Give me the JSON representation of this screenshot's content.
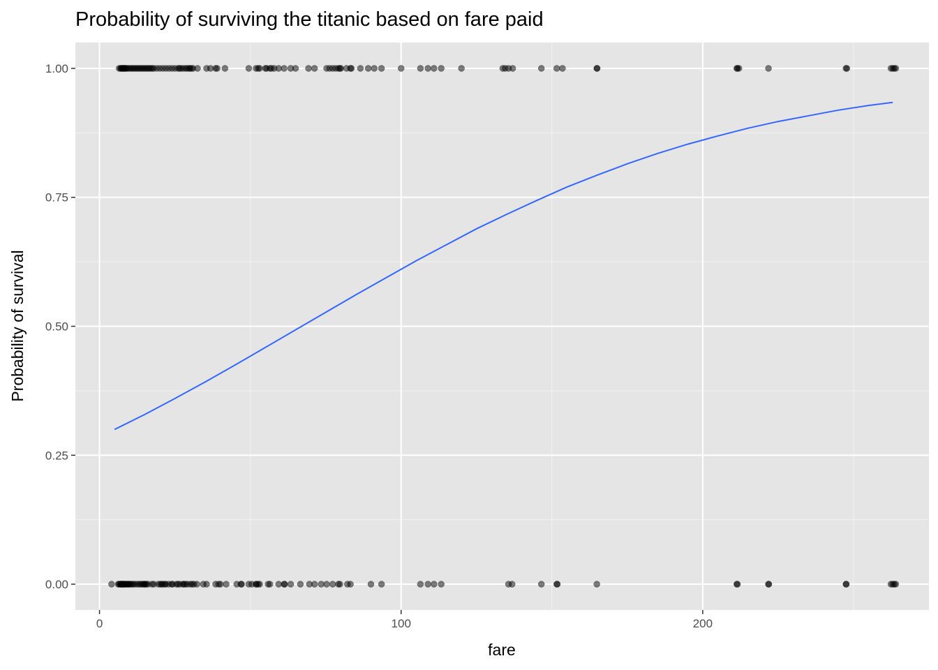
{
  "chart_data": {
    "type": "scatter",
    "title": "Probability of surviving the titanic based on fare paid",
    "xlabel": "fare",
    "ylabel": "Probability of survival",
    "xlim": [
      -8,
      275
    ],
    "ylim": [
      -0.05,
      1.05
    ],
    "x_ticks": [
      0,
      100,
      200
    ],
    "y_ticks": [
      0.0,
      0.25,
      0.5,
      0.75,
      1.0
    ],
    "x_tick_labels": [
      "0",
      "100",
      "200"
    ],
    "y_tick_labels": [
      "0.00",
      "0.25",
      "0.50",
      "0.75",
      "1.00"
    ],
    "grid": true,
    "point_color": "#000000",
    "point_opacity": 0.5,
    "line_color": "#3366ff",
    "panel_background": "#e5e5e5",
    "series": [
      {
        "kind": "points",
        "y": 1,
        "x": [
          6.5,
          7.0,
          7.2,
          7.5,
          7.7,
          7.9,
          8.0,
          8.3,
          8.5,
          8.7,
          9.0,
          9.5,
          10.0,
          10.5,
          11.0,
          11.5,
          12.0,
          12.5,
          13.0,
          13.5,
          14.0,
          14.5,
          15.0,
          15.5,
          16.0,
          16.5,
          17.0,
          17.5,
          18.0,
          19.0,
          20.0,
          21.0,
          22.0,
          23.0,
          24.0,
          25.0,
          26.0,
          26.5,
          27.0,
          27.7,
          28.5,
          29.0,
          29.7,
          30.0,
          30.5,
          31.0,
          32.5,
          35.5,
          36.8,
          38.5,
          39.0,
          41.6,
          49.5,
          51.9,
          52.6,
          53.1,
          55.0,
          55.4,
          56.5,
          57.0,
          57.9,
          59.4,
          61.2,
          63.4,
          65.0,
          69.3,
          71.3,
          75.3,
          76.3,
          77.3,
          78.3,
          79.2,
          79.7,
          80.0,
          81.9,
          83.2,
          83.5,
          86.5,
          89.1,
          91.1,
          93.5,
          100.0,
          106.4,
          108.9,
          110.9,
          113.3,
          120.0,
          133.7,
          134.5,
          135.6,
          137.0,
          146.5,
          151.6,
          153.5,
          164.9,
          165.0,
          211.3,
          211.5,
          212.0,
          221.8,
          247.5,
          247.8,
          262.4,
          263.0,
          263.5,
          264.0
        ]
      },
      {
        "kind": "points",
        "y": 0,
        "x": [
          4.0,
          6.2,
          6.5,
          6.9,
          7.0,
          7.2,
          7.3,
          7.5,
          7.6,
          7.8,
          7.9,
          8.0,
          8.2,
          8.4,
          8.7,
          9.0,
          9.3,
          9.5,
          9.8,
          10.2,
          10.5,
          11.1,
          11.5,
          12.3,
          13.0,
          13.5,
          14.1,
          14.5,
          14.9,
          15.2,
          15.5,
          16.1,
          17.4,
          18.0,
          19.5,
          20.2,
          20.6,
          21.0,
          21.7,
          22.0,
          23.0,
          24.0,
          24.2,
          25.5,
          26.0,
          26.6,
          27.7,
          27.9,
          28.5,
          29.1,
          30.1,
          30.7,
          31.3,
          32.3,
          34.4,
          35.5,
          38.5,
          39.5,
          40.1,
          42.0,
          45.5,
          46.9,
          47.1,
          49.5,
          50.5,
          51.9,
          52.0,
          52.6,
          53.1,
          55.9,
          56.5,
          59.4,
          61.2,
          61.4,
          63.4,
          66.6,
          69.6,
          71.3,
          73.5,
          75.3,
          77.3,
          79.2,
          79.7,
          82.2,
          83.2,
          90.0,
          93.5,
          106.4,
          108.9,
          110.9,
          113.3,
          135.6,
          136.8,
          146.5,
          151.6,
          151.8,
          164.9,
          211.3,
          211.5,
          221.8,
          221.9,
          247.5,
          247.6,
          262.4,
          263.0,
          263.5,
          264.0
        ]
      },
      {
        "kind": "fit-line",
        "name": "",
        "x": [
          5,
          15,
          25,
          35,
          45,
          55,
          65,
          75,
          85,
          95,
          105,
          115,
          125,
          135,
          145,
          155,
          165,
          175,
          185,
          195,
          205,
          215,
          225,
          235,
          245,
          255,
          263
        ],
        "y": [
          0.3,
          0.329,
          0.36,
          0.392,
          0.425,
          0.459,
          0.493,
          0.527,
          0.561,
          0.594,
          0.627,
          0.658,
          0.689,
          0.717,
          0.744,
          0.77,
          0.793,
          0.815,
          0.835,
          0.853,
          0.869,
          0.884,
          0.897,
          0.908,
          0.919,
          0.928,
          0.934
        ]
      }
    ]
  }
}
